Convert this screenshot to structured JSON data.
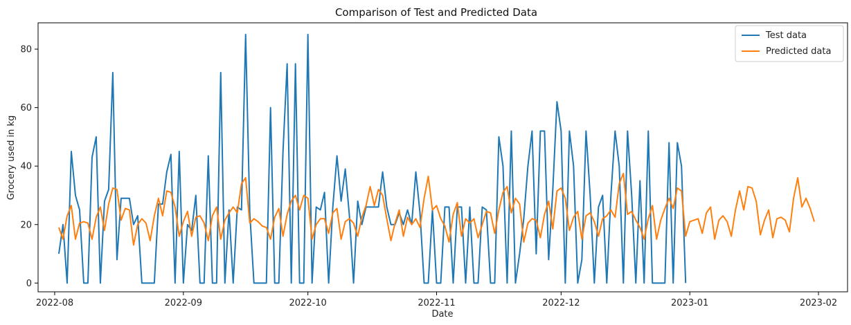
{
  "chart_data": {
    "type": "line",
    "title": "Comparison of Test and Predicted Data",
    "xlabel": "Date",
    "ylabel": "Grocery used in kg",
    "xlim": [
      "2022-07-28",
      "2023-02-08"
    ],
    "ylim": [
      -3,
      89
    ],
    "x_ticks": [
      {
        "date": "2022-08-01",
        "label": "2022-08"
      },
      {
        "date": "2022-09-01",
        "label": "2022-09"
      },
      {
        "date": "2022-10-01",
        "label": "2022-10"
      },
      {
        "date": "2022-11-01",
        "label": "2022-11"
      },
      {
        "date": "2022-12-01",
        "label": "2022-12"
      },
      {
        "date": "2023-01-01",
        "label": "2023-01"
      },
      {
        "date": "2023-02-01",
        "label": "2023-02"
      }
    ],
    "y_ticks": [
      0,
      20,
      40,
      60,
      80
    ],
    "legend_position": "top-right",
    "grid": false,
    "series": [
      {
        "name": "Test data",
        "color": "#1f77b4",
        "x_start": "2022-08-02",
        "values": [
          10,
          20,
          0,
          45,
          30,
          25,
          0,
          0,
          43,
          50,
          0,
          28,
          32,
          72,
          8,
          29,
          29,
          29,
          20,
          23,
          0,
          0,
          0,
          0,
          27,
          27,
          38,
          44,
          0,
          45,
          0,
          20,
          18,
          30,
          0,
          0,
          43.5,
          0,
          0,
          72,
          0,
          25,
          0,
          26,
          25,
          85,
          24,
          0,
          0,
          0,
          0,
          60,
          0,
          0,
          45,
          75,
          0,
          75,
          0,
          0,
          85,
          0,
          26,
          25,
          31,
          0,
          26,
          43.5,
          28,
          39,
          23,
          0,
          28,
          20,
          26,
          26,
          26,
          26,
          38,
          26,
          20,
          20,
          24,
          20,
          25,
          20,
          38,
          24,
          0,
          0,
          25,
          0,
          0,
          26,
          26,
          0,
          26,
          26,
          0,
          26,
          0,
          0,
          26,
          25,
          0,
          0,
          50,
          40,
          0,
          52,
          0,
          10,
          22,
          40,
          52,
          10,
          52,
          52,
          8,
          32,
          62,
          52,
          0,
          52,
          40,
          0,
          8,
          52,
          30,
          0,
          26,
          30,
          0,
          30,
          52,
          40,
          0,
          52,
          30,
          0,
          35,
          0,
          52,
          0,
          0,
          0,
          0,
          48,
          0,
          48,
          40,
          0
        ]
      },
      {
        "name": "Predicted data",
        "color": "#ff7f0e",
        "x_start": "2022-08-02",
        "values": [
          19,
          15,
          23,
          26.5,
          15,
          20.5,
          21,
          20.5,
          15,
          22.5,
          26,
          18,
          27,
          32.5,
          32,
          21.5,
          25.5,
          25,
          13,
          20,
          22,
          20.5,
          14.5,
          23,
          29,
          23,
          31.5,
          31,
          26,
          16,
          21,
          24.5,
          16,
          22.5,
          23,
          20.5,
          14.5,
          23,
          26,
          15,
          21.5,
          24,
          26,
          24,
          34,
          36,
          20.5,
          22,
          21,
          19.5,
          19,
          15,
          22.5,
          25.5,
          16,
          23.5,
          28,
          30,
          25,
          30,
          29,
          15,
          20,
          22,
          22,
          17,
          24,
          25.5,
          15,
          21,
          22,
          20.5,
          16,
          22.5,
          26.5,
          33,
          26.5,
          32,
          30,
          22,
          14.5,
          20.5,
          25,
          16,
          22.5,
          20,
          22,
          19,
          29,
          36.5,
          25,
          26.5,
          22,
          19.5,
          14,
          23.5,
          27.5,
          16,
          22,
          20.5,
          22,
          15.5,
          20,
          24.5,
          24,
          17,
          25,
          31,
          33,
          24,
          29,
          27,
          14,
          20.5,
          22,
          21.5,
          15.5,
          23.5,
          28,
          18.5,
          31.5,
          32.5,
          29,
          18,
          22.5,
          24.5,
          15,
          23,
          24,
          21,
          16,
          22,
          23,
          25,
          22.5,
          34,
          37.5,
          23.5,
          24.5,
          21.5,
          19,
          15,
          22,
          26.5,
          15,
          21.5,
          25.5,
          29,
          25.5,
          32.5,
          31.5,
          16,
          21,
          21.5,
          22,
          17,
          24,
          26,
          15,
          21.5,
          23,
          21,
          16,
          25,
          31.5,
          25,
          33,
          32.5,
          28,
          16.5,
          21.5,
          25,
          15.5,
          22,
          22.5,
          21.5,
          17.5,
          29,
          36,
          26,
          29,
          25.5,
          21
        ]
      }
    ]
  }
}
